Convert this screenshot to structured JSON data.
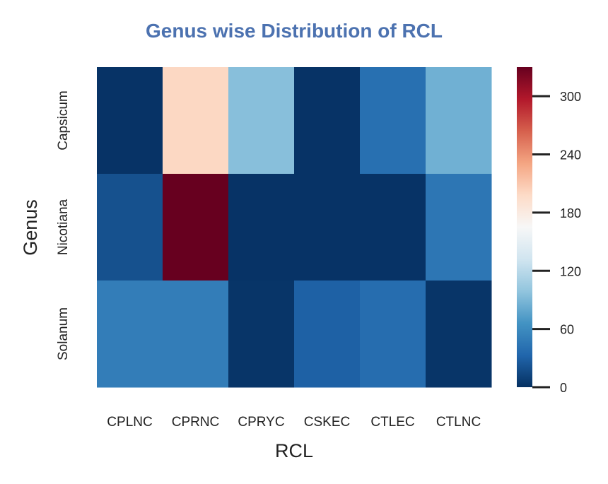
{
  "chart_data": {
    "type": "heatmap",
    "title": "Genus wise Distribution of RCL",
    "xlabel": "RCL",
    "ylabel": "Genus",
    "x_categories": [
      "CPLNC",
      "CPRNC",
      "CPRYC",
      "CSKEC",
      "CTLEC",
      "CTLNC"
    ],
    "y_categories": [
      "Capsicum",
      "Nicotiana",
      "Solanum"
    ],
    "values": [
      [
        2,
        200,
        95,
        2,
        40,
        85
      ],
      [
        20,
        330,
        2,
        2,
        2,
        45
      ],
      [
        50,
        50,
        3,
        30,
        38,
        3
      ]
    ],
    "colorbar": {
      "vmin": 0,
      "vmax": 330,
      "ticks": [
        "0",
        "60",
        "120",
        "180",
        "240",
        "300"
      ],
      "colormap": "RdBu_r"
    },
    "title_color": "#4c72b0",
    "grid": false
  }
}
